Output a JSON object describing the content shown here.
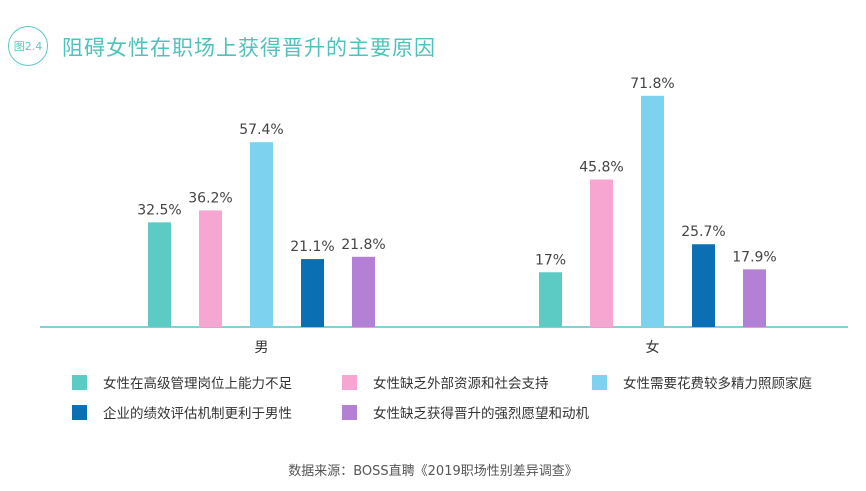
{
  "figure": {
    "badge": "图2.4",
    "title": "阻碍女性在职场上获得晋升的主要原因"
  },
  "chart_data": {
    "type": "bar",
    "categories": [
      "男",
      "女"
    ],
    "series": [
      {
        "name": "女性在高级管理岗位上能力不足",
        "color": "#5ccbc3",
        "values": [
          32.5,
          17
        ],
        "labels": [
          "32.5%",
          "17%"
        ]
      },
      {
        "name": "女性缺乏外部资源和社会支持",
        "color": "#f7a6d2",
        "values": [
          36.2,
          45.8
        ],
        "labels": [
          "36.2%",
          "45.8%"
        ]
      },
      {
        "name": "女性需要花费较多精力照顾家庭",
        "color": "#7dd2ef",
        "values": [
          57.4,
          71.8
        ],
        "labels": [
          "57.4%",
          "71.8%"
        ]
      },
      {
        "name": "企业的绩效评估机制更利于男性",
        "color": "#0a6fb3",
        "values": [
          21.1,
          25.7
        ],
        "labels": [
          "21.1%",
          "25.7%"
        ]
      },
      {
        "name": "女性缺乏获得晋升的强烈愿望和动机",
        "color": "#b380d6",
        "values": [
          21.8,
          17.9
        ],
        "labels": [
          "21.8%",
          "17.9%"
        ]
      }
    ],
    "legend_position": "bottom",
    "grid": false
  },
  "source": "数据来源：BOSS直聘《2019职场性别差异调查》"
}
